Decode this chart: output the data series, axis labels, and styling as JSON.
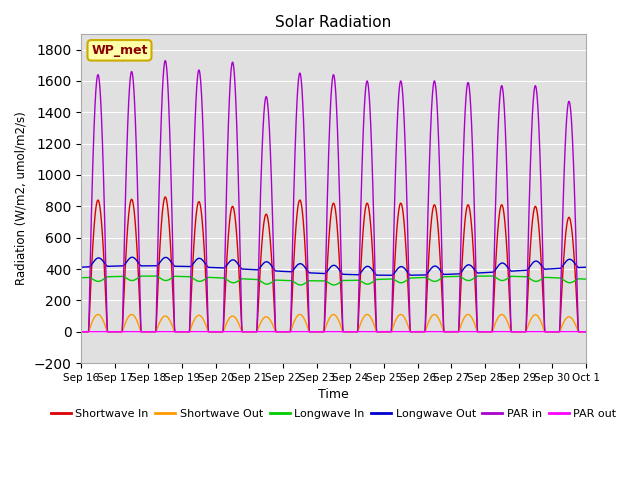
{
  "title": "Solar Radiation",
  "ylabel": "Radiation (W/m2, umol/m2/s)",
  "xlabel": "Time",
  "ylim": [
    -200,
    1900
  ],
  "yticks": [
    -200,
    0,
    200,
    400,
    600,
    800,
    1000,
    1200,
    1400,
    1600,
    1800
  ],
  "station_label": "WP_met",
  "bg_color": "#e0e0e0",
  "fig_bg_color": "#ffffff",
  "legend": [
    {
      "label": "Shortwave In",
      "color": "#dd0000"
    },
    {
      "label": "Shortwave Out",
      "color": "#ff9900"
    },
    {
      "label": "Longwave In",
      "color": "#00cc00"
    },
    {
      "label": "Longwave Out",
      "color": "#0000cc"
    },
    {
      "label": "PAR in",
      "color": "#aa00cc"
    },
    {
      "label": "PAR out",
      "color": "#ff00ff"
    }
  ],
  "n_days": 15,
  "points_per_day": 480,
  "shortwave_in_peak": [
    840,
    845,
    860,
    830,
    800,
    750,
    840,
    820,
    820,
    820,
    810,
    810,
    810,
    800,
    730
  ],
  "shortwave_out_peak": [
    110,
    110,
    100,
    105,
    100,
    95,
    110,
    110,
    110,
    110,
    110,
    110,
    110,
    108,
    95
  ],
  "par_in_peak": [
    1640,
    1660,
    1730,
    1670,
    1720,
    1500,
    1650,
    1640,
    1600,
    1600,
    1600,
    1590,
    1570,
    1570,
    1470
  ],
  "longwave_in_base": 340,
  "longwave_in_amp_slow": 15,
  "longwave_in_amp_daily": 30,
  "longwave_out_base": 390,
  "longwave_out_amp_slow": 30,
  "longwave_out_amp_daily": 60,
  "x_tick_labels": [
    "Sep 16",
    "Sep 17",
    "Sep 18",
    "Sep 19",
    "Sep 20",
    "Sep 21",
    "Sep 22",
    "Sep 23",
    "Sep 24",
    "Sep 25",
    "Sep 26",
    "Sep 27",
    "Sep 28",
    "Sep 29",
    "Sep 30",
    "Oct 1"
  ]
}
